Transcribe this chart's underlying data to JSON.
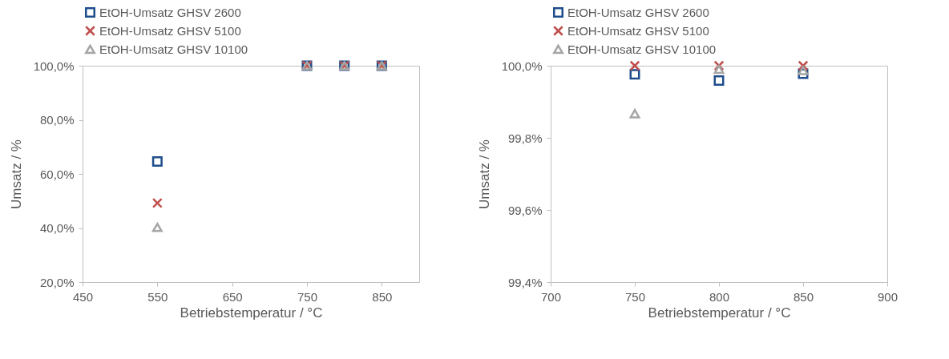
{
  "chart_data": [
    {
      "type": "scatter",
      "xlabel": "Betriebstemperatur / °C",
      "ylabel": "Umsatz / %",
      "x": [
        550,
        750,
        800,
        850
      ],
      "xlim": [
        450,
        900
      ],
      "xticks": [
        450,
        550,
        650,
        750,
        850
      ],
      "ylim": [
        20,
        100
      ],
      "yticks": [
        {
          "value": 20,
          "label": "20,0%"
        },
        {
          "value": 40,
          "label": "40,0%"
        },
        {
          "value": 60,
          "label": "60,0%"
        },
        {
          "value": 80,
          "label": "80,0%"
        },
        {
          "value": 100,
          "label": "100,0%"
        }
      ],
      "grid": false,
      "legend": "top",
      "series": [
        {
          "name": "EtOH-Umsatz GHSV 2600",
          "color": "#1f4e8c",
          "marker": "square",
          "values": [
            64.6,
            100,
            100,
            100
          ]
        },
        {
          "name": "EtOH-Umsatz GHSV 5100",
          "color": "#c0504d",
          "marker": "cross",
          "values": [
            49.2,
            100.0,
            100.0,
            100.0
          ]
        },
        {
          "name": "EtOH-Umsatz GHSV 10100",
          "color": "#a5a5a5",
          "marker": "triangle",
          "values": [
            40.2,
            100,
            100,
            100
          ]
        }
      ]
    },
    {
      "type": "scatter",
      "xlabel": "Betriebstemperatur / °C",
      "ylabel": "Umsatz / %",
      "x": [
        750,
        800,
        850
      ],
      "xlim": [
        700,
        900
      ],
      "xticks": [
        700,
        750,
        800,
        850,
        900
      ],
      "ylim": [
        99.4,
        100
      ],
      "yticks": [
        {
          "value": 99.4,
          "label": "99,4%"
        },
        {
          "value": 99.6,
          "label": "99,6%"
        },
        {
          "value": 99.8,
          "label": "99,8%"
        },
        {
          "value": 100,
          "label": "100,0%"
        }
      ],
      "grid": false,
      "legend": "top",
      "series": [
        {
          "name": "EtOH-Umsatz GHSV 2600",
          "color": "#1f4e8c",
          "marker": "square",
          "values": [
            99.976,
            99.959,
            99.978
          ]
        },
        {
          "name": "EtOH-Umsatz GHSV 5100",
          "color": "#c0504d",
          "marker": "cross",
          "values": [
            100.0,
            100.0,
            100.0
          ]
        },
        {
          "name": "EtOH-Umsatz GHSV 10100",
          "color": "#a5a5a5",
          "marker": "triangle",
          "values": [
            99.867,
            99.99,
            99.987
          ]
        }
      ]
    }
  ]
}
